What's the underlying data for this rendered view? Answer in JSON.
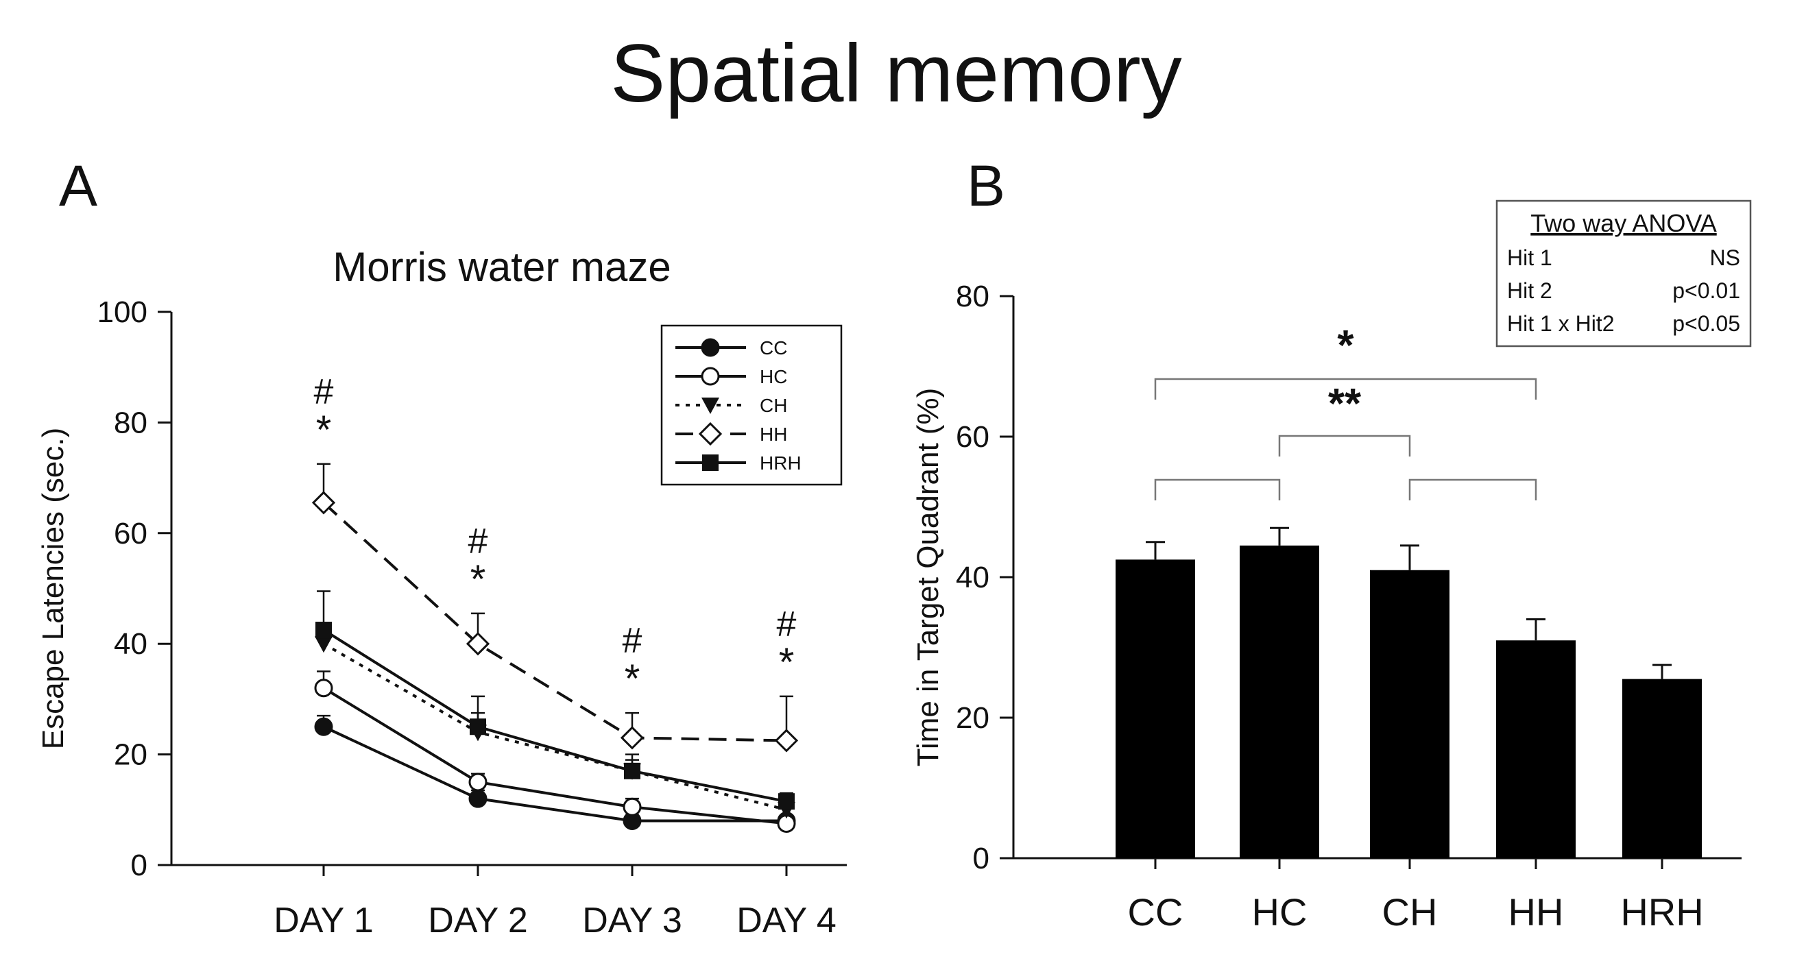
{
  "figure": {
    "title": "Spatial memory",
    "panel_a_label": "A",
    "panel_b_label": "B"
  },
  "chart_data": [
    {
      "panel": "A",
      "type": "line",
      "title": "Morris water maze",
      "xlabel": "",
      "ylabel": "Escape Latencies (sec.)",
      "categories": [
        "DAY 1",
        "DAY 2",
        "DAY 3",
        "DAY 4"
      ],
      "ylim": [
        0,
        100
      ],
      "yticks": [
        0,
        20,
        40,
        60,
        80,
        100
      ],
      "legend_position": "top-right",
      "series": [
        {
          "name": "CC",
          "values": [
            25,
            12,
            8,
            8
          ],
          "errors": [
            2,
            1.5,
            1,
            1
          ],
          "marker": "circle-filled",
          "line": "solid"
        },
        {
          "name": "HC",
          "values": [
            32,
            15,
            10.5,
            7.5
          ],
          "errors": [
            3,
            1.5,
            1.5,
            1
          ],
          "marker": "circle-open",
          "line": "solid"
        },
        {
          "name": "CH",
          "values": [
            40,
            24,
            17,
            10
          ],
          "errors": [
            3.5,
            3.5,
            2,
            1.5
          ],
          "marker": "triangle-down-filled",
          "line": "dotted"
        },
        {
          "name": "HH",
          "values": [
            65.5,
            40,
            23,
            22.5
          ],
          "errors": [
            7,
            5.5,
            4.5,
            8
          ],
          "marker": "diamond-open",
          "line": "dashed"
        },
        {
          "name": "HRH",
          "values": [
            42.5,
            25,
            17,
            11.5
          ],
          "errors": [
            7,
            5.5,
            3,
            1.5
          ],
          "marker": "square-filled",
          "line": "solid"
        }
      ],
      "annotations": [
        {
          "category": "DAY 1",
          "marks": [
            "#",
            "*"
          ]
        },
        {
          "category": "DAY 2",
          "marks": [
            "#",
            "*"
          ]
        },
        {
          "category": "DAY 3",
          "marks": [
            "#",
            "*"
          ]
        },
        {
          "category": "DAY 4",
          "marks": [
            "#",
            "*"
          ]
        }
      ]
    },
    {
      "panel": "B",
      "type": "bar",
      "title": "",
      "xlabel": "",
      "ylabel": "Time in Target Quadrant (%)",
      "categories": [
        "CC",
        "HC",
        "CH",
        "HH",
        "HRH"
      ],
      "values": [
        42.5,
        44.5,
        41,
        31,
        25.5
      ],
      "errors": [
        2.5,
        2.5,
        3.5,
        3,
        2
      ],
      "ylim": [
        0,
        80
      ],
      "yticks": [
        0,
        20,
        40,
        60,
        80
      ],
      "brackets": [
        {
          "from": "CC",
          "to": "HH",
          "label": "*"
        },
        {
          "from": "HC",
          "to": "CH",
          "label": "**"
        },
        {
          "from": "CC",
          "to": "HC",
          "label": ""
        },
        {
          "from": "CH",
          "to": "HH",
          "label": ""
        }
      ],
      "stats_box": {
        "title": "Two way ANOVA",
        "rows": [
          {
            "factor": "Hit 1",
            "result": "NS"
          },
          {
            "factor": "Hit 2",
            "result": "p<0.01"
          },
          {
            "factor": "Hit 1 x Hit2",
            "result": "p<0.05"
          }
        ]
      }
    }
  ]
}
